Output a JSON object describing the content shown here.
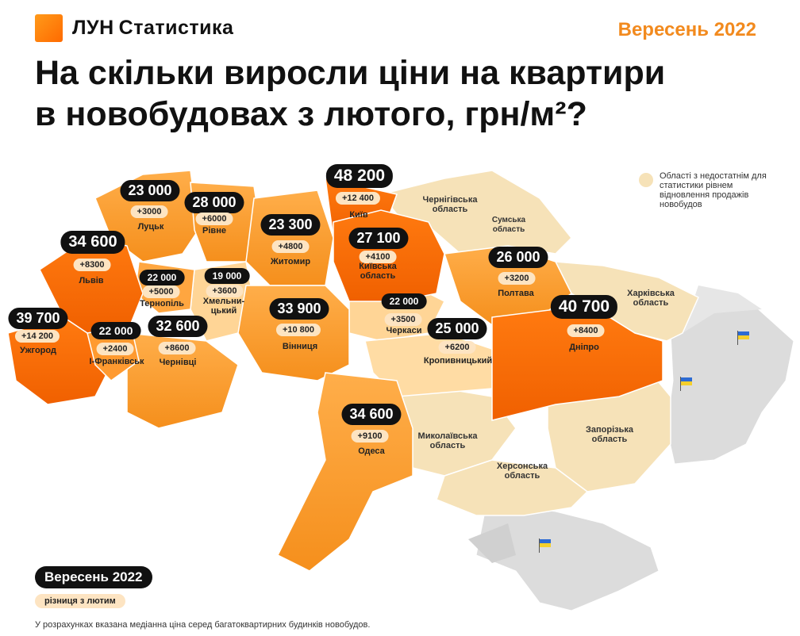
{
  "brand": {
    "name": "ЛУН",
    "product": "Статистика"
  },
  "date_top": "Вересень 2022",
  "title_line1": "На скільки виросли ціни на квартири",
  "title_line2": "в новобудовах з лютого, грн/м²?",
  "colors": {
    "accent": "#f28a1e",
    "high": "#ff6a00",
    "mid": "#ffa640",
    "low": "#ffd596",
    "insufficient": "#f6e2b8",
    "occupied": "#d9d9d9"
  },
  "regions": [
    {
      "name": "Київ",
      "price": "48 200",
      "diff": "+12 400"
    },
    {
      "name": "Київська область",
      "price": "27 100",
      "diff": "+4100"
    },
    {
      "name": "Дніпро",
      "price": "40 700",
      "diff": "+8400"
    },
    {
      "name": "Ужгород",
      "price": "39 700",
      "diff": "+14 200"
    },
    {
      "name": "Львів",
      "price": "34 600",
      "diff": "+8300"
    },
    {
      "name": "Одеса",
      "price": "34 600",
      "diff": "+9100"
    },
    {
      "name": "Вінниця",
      "price": "33 900",
      "diff": "+10 800"
    },
    {
      "name": "Чернівці",
      "price": "32 600",
      "diff": "+8600"
    },
    {
      "name": "Рівне",
      "price": "28 000",
      "diff": "+6000"
    },
    {
      "name": "Полтава",
      "price": "26 000",
      "diff": "+3200"
    },
    {
      "name": "Кропивницький",
      "price": "25 000",
      "diff": "+6200"
    },
    {
      "name": "Житомир",
      "price": "23 300",
      "diff": "+4800"
    },
    {
      "name": "Луцьк",
      "price": "23 000",
      "diff": "+3000"
    },
    {
      "name": "Тернопіль",
      "price": "22 000",
      "diff": "+5000"
    },
    {
      "name": "І-Франківськ",
      "price": "22 000",
      "diff": "+2400"
    },
    {
      "name": "Черкаси",
      "price": "22 000",
      "diff": "+3500"
    },
    {
      "name": "Хмельницький",
      "name_l1": "Хмельни-",
      "name_l2": "цький",
      "price": "19 000",
      "diff": "+3600"
    }
  ],
  "other_regions": {
    "chernihiv": [
      "Чернігівська",
      "область"
    ],
    "sumy": [
      "Сумська",
      "область"
    ],
    "kharkiv": [
      "Харківська",
      "область"
    ],
    "mykolaiv": [
      "Миколаївська",
      "область"
    ],
    "zaporizhzhia": [
      "Запорізька",
      "область"
    ],
    "kherson": [
      "Херсонська",
      "область"
    ]
  },
  "legend_insufficient": "Області з недостатнім для статистики рівнем відновлення продажів новобудов",
  "legend_price": "Вересень 2022",
  "legend_diff": "різниця з лютим",
  "footnote": "У розрахунках вказана медіанна ціна серед багатоквартирних будинків новобудов."
}
